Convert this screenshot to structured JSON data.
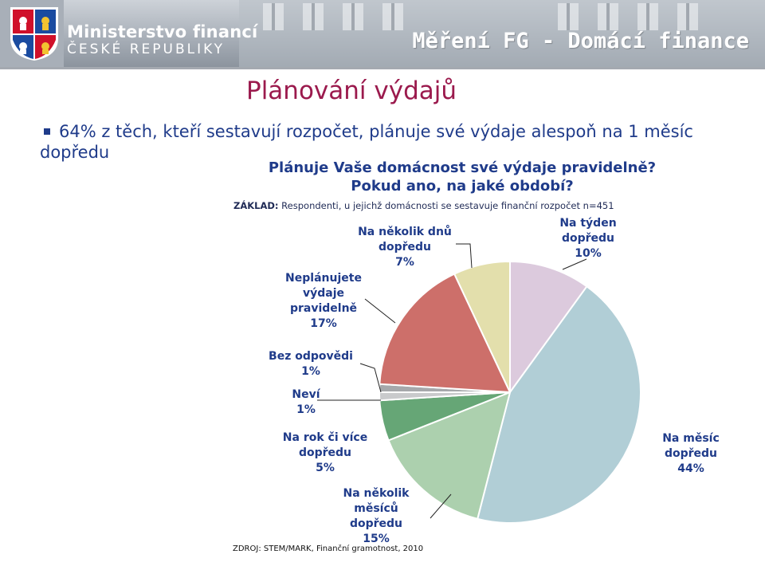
{
  "header": {
    "ministry_name": "Ministerstvo financí",
    "ministry_subtitle": "ČESKÉ REPUBLIKY",
    "section_title": "Měření FG - Domácí finance"
  },
  "slide": {
    "title": "Plánování výdajů",
    "bullet": "64% z těch, kteří sestavují rozpočet, plánuje své výdaje alespoň na 1 měsíc dopředu",
    "question_line1": "Plánuje Vaše domácnost své výdaje pravidelně?",
    "question_line2": "Pokud ano, na jaké období?",
    "basis_label": "ZÁKLAD:",
    "basis_text": " Respondenti, u jejichž domácnosti se sestavuje finanční rozpočet n=451",
    "source": "ZDROJ: STEM/MARK, Finanční gramotnost, 2010"
  },
  "colors": {
    "title": "#9b1a4d",
    "text_blue": "#1f3b8a",
    "header_gray": "#a9b0b9"
  },
  "chart_data": {
    "type": "pie",
    "start": "12 o'clock, clockwise",
    "slices": [
      {
        "label_lines": [
          "Na týden",
          "dopředu"
        ],
        "value": 10,
        "display": "10%",
        "color": "#dccadd"
      },
      {
        "label_lines": [
          "Na měsíc",
          "dopředu"
        ],
        "value": 44,
        "display": "44%",
        "color": "#b1ced6"
      },
      {
        "label_lines": [
          "Na několik",
          "měsíců",
          "dopředu"
        ],
        "value": 15,
        "display": "15%",
        "color": "#acd0ae"
      },
      {
        "label_lines": [
          "Na rok či více",
          "dopředu"
        ],
        "value": 5,
        "display": "5%",
        "color": "#66a676"
      },
      {
        "label_lines": [
          "Neví"
        ],
        "value": 1,
        "display": "1%",
        "color": "#c9cacc"
      },
      {
        "label_lines": [
          "Bez odpovědi"
        ],
        "value": 1,
        "display": "1%",
        "color": "#a6a8ab"
      },
      {
        "label_lines": [
          "Neplánujete",
          "výdaje",
          "pravidelně"
        ],
        "value": 17,
        "display": "17%",
        "color": "#cd6f6a"
      },
      {
        "label_lines": [
          "Na několik dnů",
          "dopředu"
        ],
        "value": 7,
        "display": "7%",
        "color": "#e3dfac"
      }
    ]
  }
}
